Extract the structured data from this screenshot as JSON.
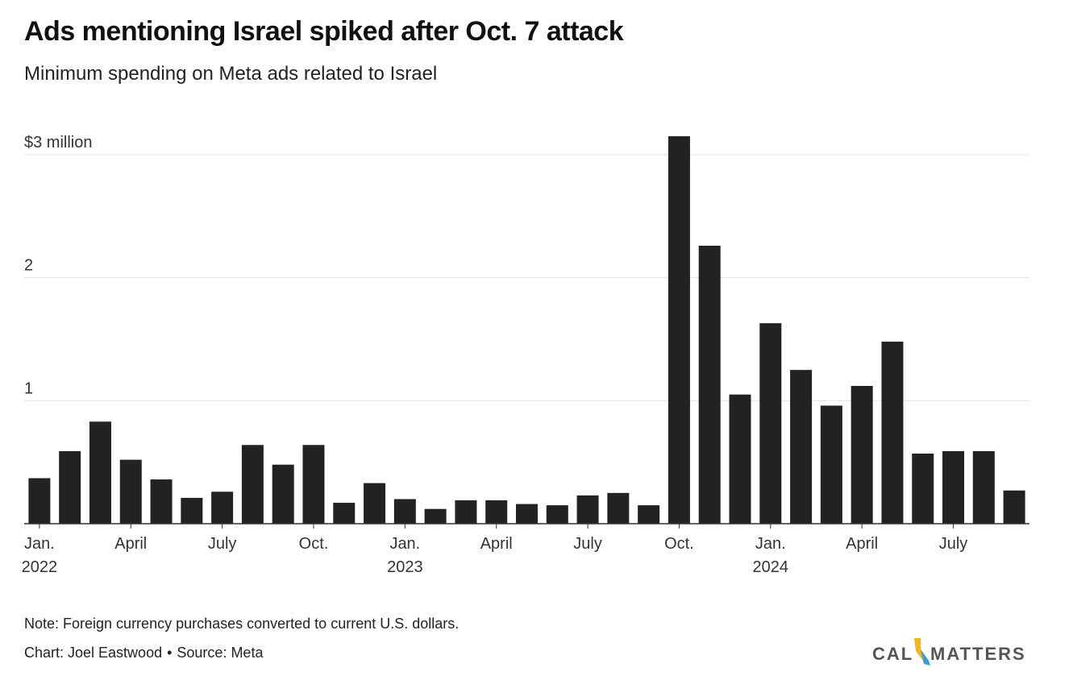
{
  "header": {
    "title": "Ads mentioning Israel spiked after Oct. 7 attack",
    "subtitle": "Minimum spending on Meta ads related to Israel"
  },
  "footer": {
    "note": "Note: Foreign currency purchases converted to current U.S. dollars.",
    "chart_credit": "Chart: Joel Eastwood",
    "separator": "•",
    "source": "Source: Meta"
  },
  "logo": {
    "left_text": "CAL",
    "right_text": "MATTERS",
    "colors": {
      "yellow": "#f2b51c",
      "blue": "#3a9ad9"
    }
  },
  "colors": {
    "bar": "#222222",
    "grid": "#e3e3e3",
    "axis": "#333333"
  },
  "chart_data": {
    "type": "bar",
    "title": "Ads mentioning Israel spiked after Oct. 7 attack",
    "subtitle": "Minimum spending on Meta ads related to Israel",
    "ylabel": "",
    "xlabel": "",
    "ylim": [
      0,
      3
    ],
    "grid": true,
    "y_ticks": [
      {
        "value": 1,
        "label": "1"
      },
      {
        "value": 2,
        "label": "2"
      },
      {
        "value": 3,
        "label": "$3 million"
      }
    ],
    "x_ticks": [
      {
        "index": 0,
        "label": "Jan.",
        "sublabel": "2022"
      },
      {
        "index": 3,
        "label": "April",
        "sublabel": ""
      },
      {
        "index": 6,
        "label": "July",
        "sublabel": ""
      },
      {
        "index": 9,
        "label": "Oct.",
        "sublabel": ""
      },
      {
        "index": 12,
        "label": "Jan.",
        "sublabel": "2023"
      },
      {
        "index": 15,
        "label": "April",
        "sublabel": ""
      },
      {
        "index": 18,
        "label": "July",
        "sublabel": ""
      },
      {
        "index": 21,
        "label": "Oct.",
        "sublabel": ""
      },
      {
        "index": 24,
        "label": "Jan.",
        "sublabel": "2024"
      },
      {
        "index": 27,
        "label": "April",
        "sublabel": ""
      },
      {
        "index": 30,
        "label": "July",
        "sublabel": ""
      }
    ],
    "categories": [
      "2022-01",
      "2022-02",
      "2022-03",
      "2022-04",
      "2022-05",
      "2022-06",
      "2022-07",
      "2022-08",
      "2022-09",
      "2022-10",
      "2022-11",
      "2022-12",
      "2023-01",
      "2023-02",
      "2023-03",
      "2023-04",
      "2023-05",
      "2023-06",
      "2023-07",
      "2023-08",
      "2023-09",
      "2023-10",
      "2023-11",
      "2023-12",
      "2024-01",
      "2024-02",
      "2024-03",
      "2024-04",
      "2024-05",
      "2024-06",
      "2024-07",
      "2024-08",
      "2024-09"
    ],
    "values": [
      0.37,
      0.59,
      0.83,
      0.52,
      0.36,
      0.21,
      0.26,
      0.64,
      0.48,
      0.64,
      0.17,
      0.33,
      0.2,
      0.12,
      0.19,
      0.19,
      0.16,
      0.15,
      0.23,
      0.25,
      0.15,
      3.15,
      2.26,
      1.05,
      1.63,
      1.25,
      0.96,
      1.12,
      1.48,
      0.57,
      0.59,
      0.59,
      0.27
    ]
  }
}
